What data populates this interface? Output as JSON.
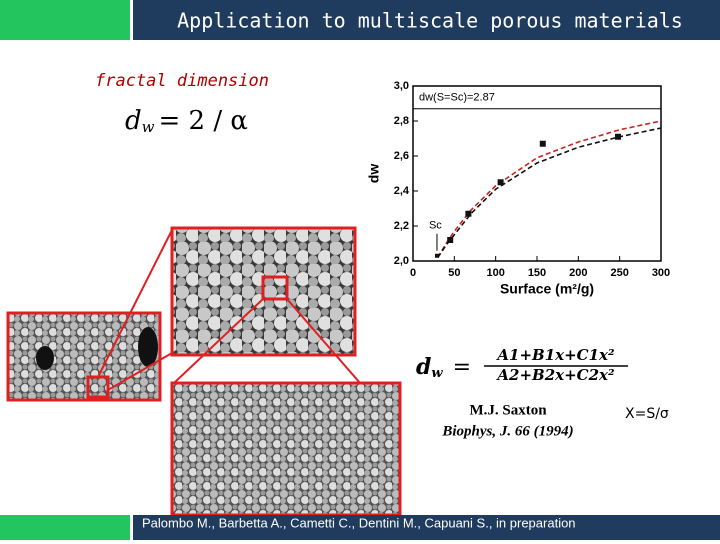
{
  "header": {
    "title": "Application to multiscale porous materials"
  },
  "label": "fractal dimension",
  "formula1": {
    "base": "d",
    "sub": "w",
    "rhs": "= 2 / α"
  },
  "formula2": {
    "base": "d",
    "sub": "w",
    "eq": "=",
    "numerator": "A1+B1x+C1x²",
    "denominator": "A2+B2x+C2x²"
  },
  "citation": {
    "author": "M.J. Saxton",
    "journal": "Biophys, J. 66 (1994)"
  },
  "variable": "X=S/σ",
  "footer": "Palombo M., Barbetta A., Cametti C., Dentini M., Capuani S., in preparation",
  "chart_data": {
    "type": "scatter",
    "x_label": "Surface (m²/g)",
    "y_label": "dw",
    "xlim": [
      0,
      300
    ],
    "xticks": [
      0,
      50,
      100,
      150,
      200,
      250,
      300
    ],
    "ylim": [
      2.0,
      3.0
    ],
    "yticks": [
      {
        "value": 2.0,
        "label": "2,0"
      },
      {
        "value": 2.2,
        "label": "2,2"
      },
      {
        "value": 2.4,
        "label": "2,4"
      },
      {
        "value": 2.6,
        "label": "2,6"
      },
      {
        "value": 2.8,
        "label": "2,8"
      },
      {
        "value": 3.0,
        "label": "3,0"
      }
    ],
    "points": {
      "color": "#111111",
      "x": [
        29,
        45,
        67,
        106,
        157,
        248
      ],
      "values": [
        2.03,
        2.12,
        2.27,
        2.45,
        2.67,
        2.71
      ]
    },
    "fits": [
      {
        "color": "#cc2222",
        "x": [
          30,
          40,
          50,
          70,
          100,
          150,
          200,
          250,
          300
        ],
        "values": [
          2.02,
          2.1,
          2.17,
          2.29,
          2.43,
          2.59,
          2.68,
          2.75,
          2.8
        ]
      },
      {
        "color": "#111111",
        "x": [
          30,
          40,
          50,
          70,
          100,
          150,
          200,
          250,
          300
        ],
        "values": [
          2.02,
          2.09,
          2.15,
          2.27,
          2.41,
          2.56,
          2.65,
          2.71,
          2.76
        ]
      }
    ],
    "hline": {
      "value": 2.87,
      "label": "dw(S=Sc)=2.87"
    },
    "marker_label": "Sc"
  }
}
